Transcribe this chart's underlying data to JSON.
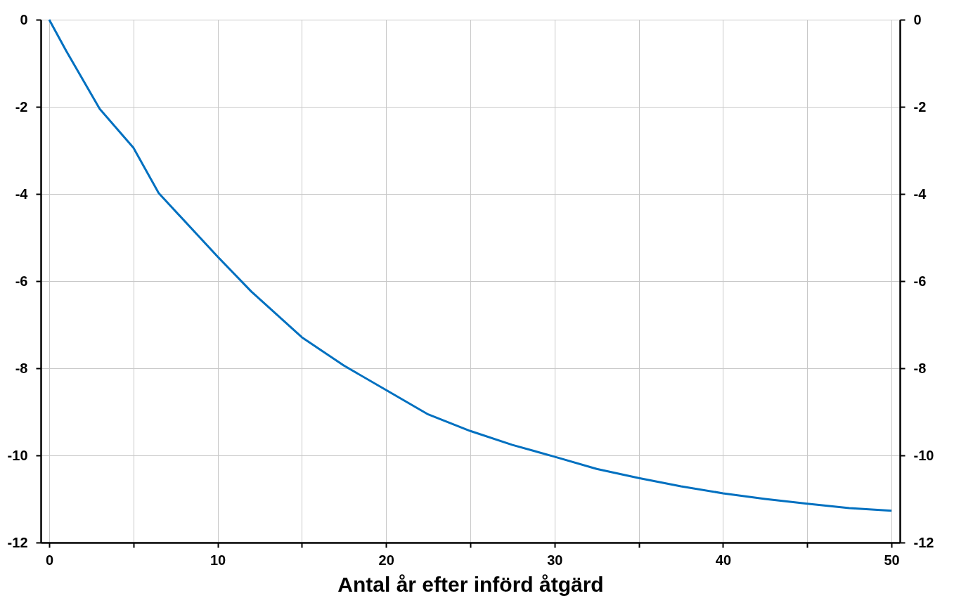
{
  "chart_data": {
    "type": "line",
    "xlabel": "Antal år efter införd åtgärd",
    "x": [
      0,
      1,
      3,
      5,
      6.5,
      10,
      12,
      15,
      17.5,
      20,
      22.5,
      25,
      27.5,
      30,
      32.5,
      35,
      37.5,
      40,
      42.5,
      45,
      47.5,
      50
    ],
    "series": [
      {
        "color": "#0070c0",
        "values": [
          0,
          -0.71,
          -2.05,
          -2.94,
          -3.98,
          -5.44,
          -6.24,
          -7.29,
          -7.94,
          -8.5,
          -9.06,
          -9.44,
          -9.76,
          -10.03,
          -10.31,
          -10.52,
          -10.71,
          -10.87,
          -11.0,
          -11.11,
          -11.21,
          -11.27
        ]
      }
    ],
    "xlim": [
      -0.5,
      50.5
    ],
    "xticks": [
      0,
      {
        "value": 5,
        "label": null
      },
      10,
      {
        "value": 15,
        "label": null
      },
      20,
      {
        "value": 25,
        "label": null
      },
      30,
      {
        "value": 35,
        "label": null
      },
      40,
      {
        "value": 45,
        "label": null
      },
      50
    ],
    "ylim": [
      -12,
      0
    ],
    "yticks": [
      -12,
      -10,
      -8,
      -6,
      -4,
      -2,
      0
    ],
    "y2lim": [
      -12,
      0
    ],
    "y2ticks": [
      -12,
      -10,
      -8,
      -6,
      -4,
      -2,
      0
    ],
    "grid": true,
    "marker": "none",
    "line_style": "solid",
    "legend": false
  }
}
